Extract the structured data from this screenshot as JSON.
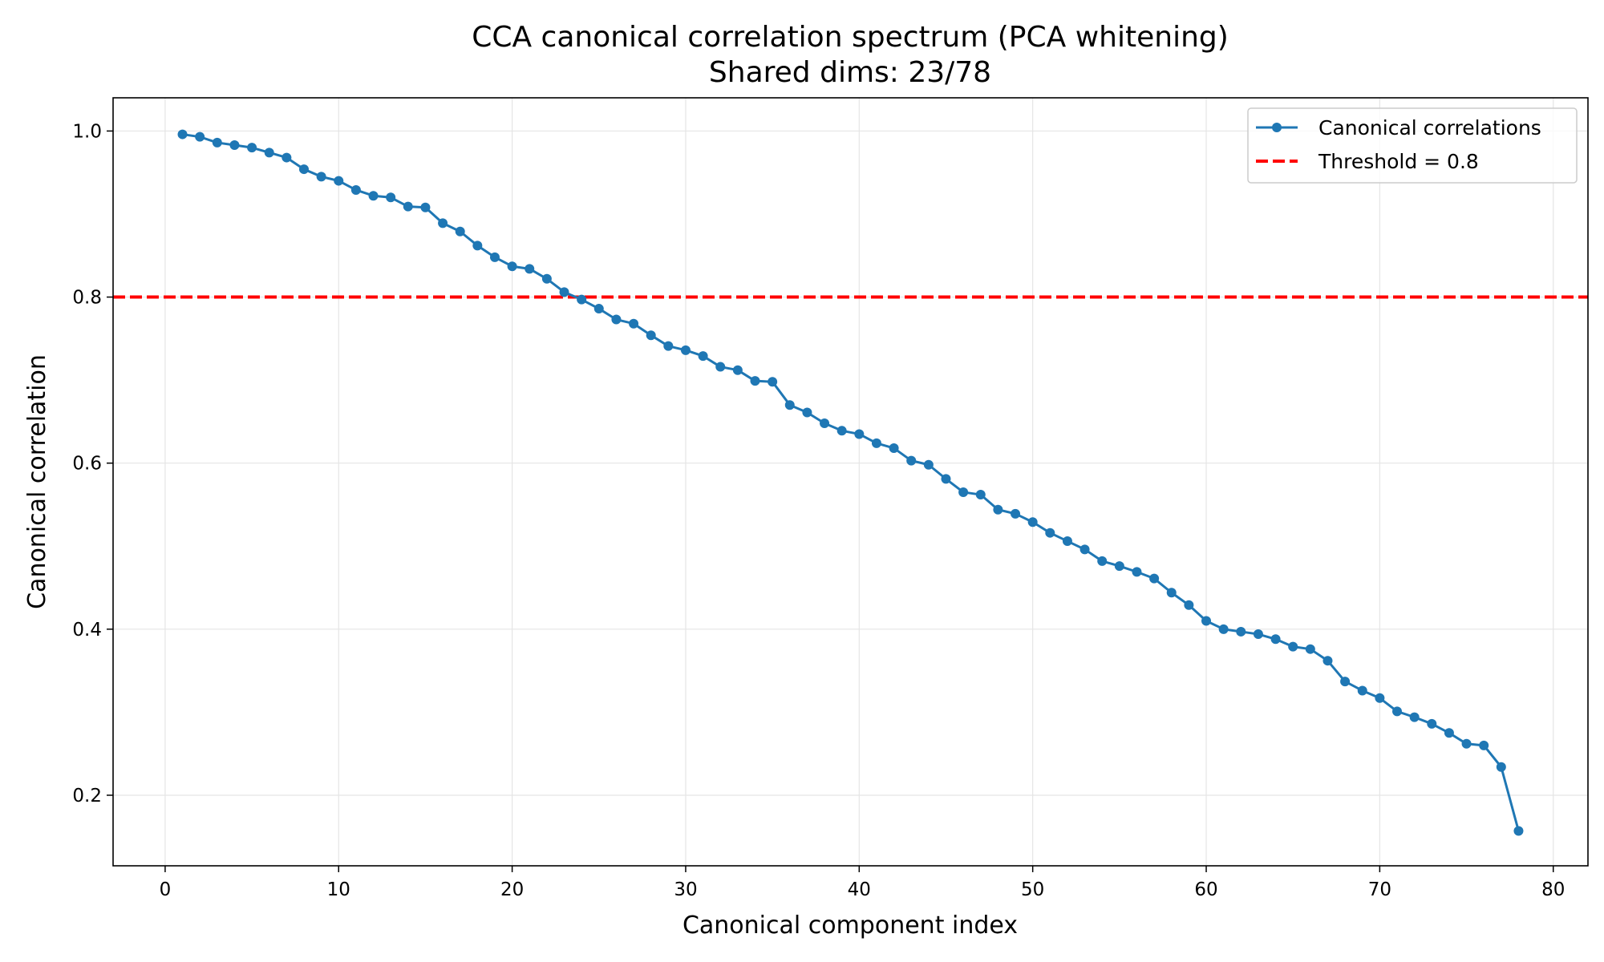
{
  "chart_data": {
    "type": "line",
    "title": "CCA canonical correlation spectrum (PCA whitening)",
    "subtitle": "Shared dims: 23/78",
    "xlabel": "Canonical component index",
    "ylabel": "Canonical correlation",
    "xlim": [
      -3,
      82
    ],
    "ylim": [
      0.115,
      1.04
    ],
    "xticks": [
      0,
      10,
      20,
      30,
      40,
      50,
      60,
      70,
      80
    ],
    "xtick_labels": [
      "0",
      "10",
      "20",
      "30",
      "40",
      "50",
      "60",
      "70",
      "80"
    ],
    "yticks": [
      0.2,
      0.4,
      0.6,
      0.8,
      1.0
    ],
    "ytick_labels": [
      "0.2",
      "0.4",
      "0.6",
      "0.8",
      "1.0"
    ],
    "grid": true,
    "legend_position": "top-right",
    "series": [
      {
        "name": "Canonical correlations",
        "color": "#1f77b4",
        "marker": "circle",
        "x": [
          1,
          2,
          3,
          4,
          5,
          6,
          7,
          8,
          9,
          10,
          11,
          12,
          13,
          14,
          15,
          16,
          17,
          18,
          19,
          20,
          21,
          22,
          23,
          24,
          25,
          26,
          27,
          28,
          29,
          30,
          31,
          32,
          33,
          34,
          35,
          36,
          37,
          38,
          39,
          40,
          41,
          42,
          43,
          44,
          45,
          46,
          47,
          48,
          49,
          50,
          51,
          52,
          53,
          54,
          55,
          56,
          57,
          58,
          59,
          60,
          61,
          62,
          63,
          64,
          65,
          66,
          67,
          68,
          69,
          70,
          71,
          72,
          73,
          74,
          75,
          76,
          77,
          78
        ],
        "values": [
          0.996,
          0.993,
          0.986,
          0.983,
          0.98,
          0.974,
          0.968,
          0.954,
          0.945,
          0.94,
          0.929,
          0.922,
          0.92,
          0.909,
          0.908,
          0.889,
          0.879,
          0.862,
          0.848,
          0.837,
          0.834,
          0.822,
          0.806,
          0.797,
          0.786,
          0.773,
          0.768,
          0.754,
          0.741,
          0.736,
          0.729,
          0.716,
          0.712,
          0.699,
          0.698,
          0.67,
          0.661,
          0.648,
          0.639,
          0.635,
          0.624,
          0.618,
          0.603,
          0.598,
          0.581,
          0.565,
          0.562,
          0.544,
          0.539,
          0.529,
          0.516,
          0.506,
          0.496,
          0.482,
          0.476,
          0.469,
          0.461,
          0.444,
          0.429,
          0.41,
          0.4,
          0.397,
          0.394,
          0.388,
          0.379,
          0.376,
          0.362,
          0.337,
          0.326,
          0.317,
          0.301,
          0.294,
          0.286,
          0.275,
          0.262,
          0.26,
          0.234,
          0.157
        ]
      }
    ],
    "threshold": {
      "name": "Threshold = 0.8",
      "value": 0.8,
      "color": "#ff0000",
      "style": "dashed"
    },
    "grid_color": "#e5e5e5",
    "axis_color": "#000000"
  }
}
